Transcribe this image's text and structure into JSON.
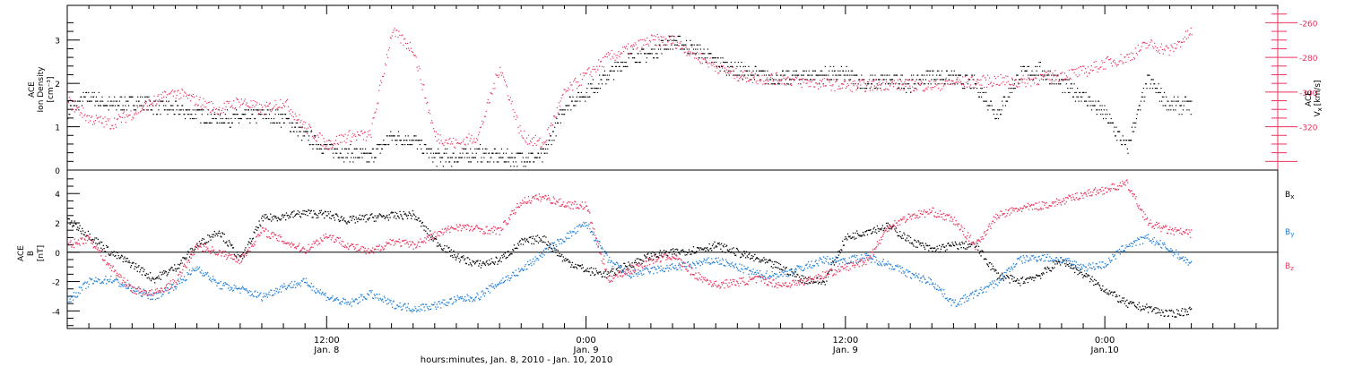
{
  "chart_data": [
    {
      "type": "scatter",
      "panel": "top",
      "title": "",
      "ylabel_left": [
        "ACE",
        "Ion Density"
      ],
      "ylabel_left_unit": "[cm⁻³]",
      "ylabel_right": [
        "ACE",
        "V"
      ],
      "ylabel_right_sub": "x",
      "ylabel_right_unit": "[km/s]",
      "ylim_left": [
        0,
        3.8
      ],
      "yticks_left": [
        0,
        1,
        2,
        3
      ],
      "ylim_right": [
        -250,
        -345
      ],
      "yticks_right": [
        -260,
        -280,
        -300,
        -320
      ],
      "grid": false,
      "series": [
        {
          "axis": "left",
          "color": "#000000",
          "x": [
            0,
            1,
            2,
            3,
            4,
            5,
            6,
            7,
            8,
            9,
            10,
            11,
            12,
            13,
            14,
            15,
            16,
            17,
            18,
            19,
            20,
            21,
            22,
            23,
            24,
            25,
            26,
            27,
            28,
            29,
            30,
            31,
            32,
            33,
            34,
            35,
            36,
            37,
            38,
            39,
            40,
            41,
            42,
            43,
            44,
            45,
            46,
            47,
            48,
            49,
            50,
            51,
            52
          ],
          "y": [
            1.4,
            1.7,
            1.5,
            1.6,
            1.5,
            1.4,
            1.3,
            1.2,
            1.2,
            1.3,
            1.2,
            0.8,
            0.5,
            0.4,
            0.3,
            0.8,
            0.7,
            0.3,
            0.3,
            0.4,
            0.3,
            0.3,
            0.3,
            1.5,
            1.8,
            2.2,
            2.6,
            2.7,
            3.0,
            2.8,
            2.5,
            2.3,
            2.2,
            2.1,
            2.2,
            2.2,
            2.2,
            2.0,
            2.1,
            2.0,
            2.2,
            2.1,
            2.0,
            1.3,
            2.2,
            2.3,
            2.0,
            1.7,
            1.3,
            0.5,
            2.1,
            1.5,
            1.5
          ]
        },
        {
          "axis": "right",
          "color": "#e8335c",
          "x": [
            0,
            1,
            2,
            3,
            4,
            5,
            6,
            7,
            8,
            9,
            10,
            11,
            12,
            13,
            14,
            15,
            16,
            17,
            18,
            19,
            20,
            21,
            22,
            23,
            24,
            25,
            26,
            27,
            28,
            29,
            30,
            31,
            32,
            33,
            34,
            35,
            36,
            37,
            38,
            39,
            40,
            41,
            42,
            43,
            44,
            45,
            46,
            47,
            48,
            49,
            50,
            51,
            52
          ],
          "y": [
            -305,
            -315,
            -318,
            -312,
            -305,
            -300,
            -305,
            -310,
            -305,
            -310,
            -305,
            -320,
            -330,
            -325,
            -325,
            -265,
            -275,
            -325,
            -330,
            -325,
            -285,
            -325,
            -330,
            -300,
            -290,
            -280,
            -275,
            -270,
            -270,
            -278,
            -285,
            -290,
            -292,
            -292,
            -294,
            -295,
            -296,
            -296,
            -295,
            -296,
            -296,
            -294,
            -294,
            -293,
            -294,
            -292,
            -290,
            -288,
            -283,
            -280,
            -272,
            -276,
            -265
          ]
        }
      ]
    },
    {
      "type": "scatter",
      "panel": "bottom",
      "title": "",
      "ylabel": [
        "ACE",
        "B"
      ],
      "ylabel_unit": "[nT]",
      "ylim": [
        -5.2,
        5.6
      ],
      "yticks": [
        -4,
        -2,
        0,
        2,
        4
      ],
      "zero_line": true,
      "grid": false,
      "legend_placement": "right",
      "xlabel": "hours:minutes, Jan.  8, 2010 - Jan. 10, 2010",
      "x_ticks": [
        {
          "hours": 12,
          "label": "12:00",
          "sublabel": "Jan. 8"
        },
        {
          "hours": 24,
          "label": "0:00",
          "sublabel": "Jan. 9"
        },
        {
          "hours": 36,
          "label": "12:00",
          "sublabel": "Jan. 9"
        },
        {
          "hours": 48,
          "label": "0:00",
          "sublabel": "Jan.10"
        }
      ],
      "series": [
        {
          "name": "B",
          "sub": "x",
          "color": "#000000",
          "x": [
            0,
            1,
            2,
            3,
            4,
            5,
            6,
            7,
            8,
            9,
            10,
            11,
            12,
            13,
            14,
            15,
            16,
            17,
            18,
            19,
            20,
            21,
            22,
            23,
            24,
            25,
            26,
            27,
            28,
            29,
            30,
            31,
            32,
            33,
            34,
            35,
            36,
            37,
            38,
            39,
            40,
            41,
            42,
            43,
            44,
            45,
            46,
            47,
            48,
            49,
            50,
            51,
            52
          ],
          "y": [
            2.2,
            1.2,
            0.0,
            -0.8,
            -1.8,
            -1.0,
            0.5,
            1.5,
            -0.5,
            2.3,
            2.5,
            2.7,
            2.6,
            2.2,
            2.4,
            2.5,
            2.6,
            0.8,
            -0.3,
            -0.8,
            -0.5,
            0.7,
            1.0,
            -0.5,
            -1.2,
            -1.5,
            -0.8,
            -0.2,
            0.0,
            0.2,
            0.5,
            0.0,
            -0.5,
            -1.0,
            -1.8,
            -2.0,
            1.0,
            1.5,
            1.8,
            0.8,
            0.2,
            0.5,
            0.5,
            -1.5,
            -2.0,
            -1.5,
            -0.5,
            -1.5,
            -2.5,
            -3.5,
            -3.8,
            -4.2,
            -3.9
          ]
        },
        {
          "name": "B",
          "sub": "y",
          "color": "#1f7fd6",
          "x": [
            0,
            1,
            2,
            3,
            4,
            5,
            6,
            7,
            8,
            9,
            10,
            11,
            12,
            13,
            14,
            15,
            16,
            17,
            18,
            19,
            20,
            21,
            22,
            23,
            24,
            25,
            26,
            27,
            28,
            29,
            30,
            31,
            32,
            33,
            34,
            35,
            36,
            37,
            38,
            39,
            40,
            41,
            42,
            43,
            44,
            45,
            46,
            47,
            48,
            49,
            50,
            51,
            52
          ],
          "y": [
            -3.3,
            -2.0,
            -1.8,
            -2.5,
            -3.0,
            -2.2,
            -1.0,
            -2.2,
            -2.5,
            -3.0,
            -2.3,
            -2.0,
            -3.0,
            -3.5,
            -2.8,
            -3.5,
            -3.8,
            -3.6,
            -3.2,
            -3.0,
            -2.0,
            -1.2,
            0.0,
            1.0,
            2.0,
            -0.5,
            -1.5,
            -1.2,
            -1.0,
            -0.8,
            -0.5,
            -1.0,
            -1.5,
            -1.5,
            -1.0,
            -0.5,
            -0.5,
            -0.3,
            -0.8,
            -1.5,
            -2.0,
            -3.5,
            -2.8,
            -2.0,
            -0.5,
            -0.3,
            -0.5,
            -1.0,
            -0.8,
            0.5,
            1.0,
            0.2,
            -0.8
          ]
        },
        {
          "name": "B",
          "sub": "z",
          "color": "#e8335c",
          "x": [
            0,
            1,
            2,
            3,
            4,
            5,
            6,
            7,
            8,
            9,
            10,
            11,
            12,
            13,
            14,
            15,
            16,
            17,
            18,
            19,
            20,
            21,
            22,
            23,
            24,
            25,
            26,
            27,
            28,
            29,
            30,
            31,
            32,
            33,
            34,
            35,
            36,
            37,
            38,
            39,
            40,
            41,
            42,
            43,
            44,
            45,
            46,
            47,
            48,
            49,
            50,
            51,
            52
          ],
          "y": [
            0.5,
            1.0,
            -1.0,
            -2.5,
            -2.8,
            -2.0,
            0.5,
            0.0,
            -0.5,
            1.5,
            0.8,
            0.2,
            1.2,
            0.5,
            0.0,
            0.8,
            0.5,
            1.2,
            1.8,
            1.6,
            1.5,
            3.5,
            3.8,
            3.3,
            3.2,
            -1.8,
            -1.2,
            -0.5,
            -0.2,
            -1.5,
            -2.2,
            -2.0,
            -1.8,
            -2.2,
            -2.0,
            -1.5,
            -1.0,
            -0.5,
            1.8,
            2.5,
            2.8,
            2.2,
            0.5,
            2.5,
            3.0,
            3.2,
            3.5,
            4.0,
            4.3,
            4.7,
            2.0,
            1.5,
            1.3
          ]
        }
      ]
    }
  ]
}
